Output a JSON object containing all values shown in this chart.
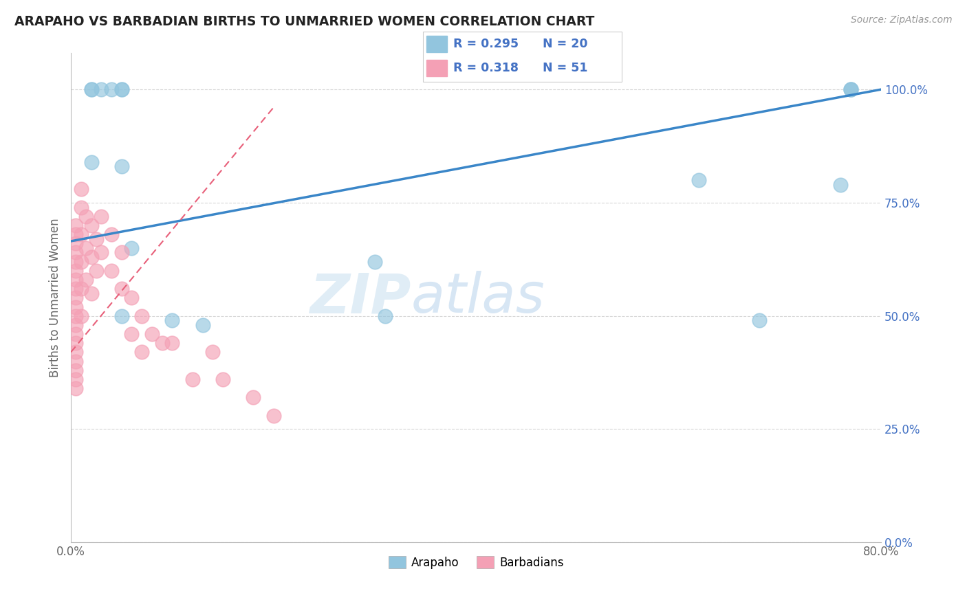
{
  "title": "ARAPAHO VS BARBADIAN BIRTHS TO UNMARRIED WOMEN CORRELATION CHART",
  "source": "Source: ZipAtlas.com",
  "ylabel": "Births to Unmarried Women",
  "xlim": [
    0.0,
    0.8
  ],
  "ylim": [
    0.0,
    1.08
  ],
  "yticks": [
    0.0,
    0.25,
    0.5,
    0.75,
    1.0
  ],
  "ytick_labels": [
    "0.0%",
    "25.0%",
    "50.0%",
    "75.0%",
    "100.0%"
  ],
  "xticks": [
    0.0,
    0.8
  ],
  "xtick_labels": [
    "0.0%",
    "80.0%"
  ],
  "watermark_zip": "ZIP",
  "watermark_atlas": "atlas",
  "arapaho_R": "0.295",
  "arapaho_N": "20",
  "barbadian_R": "0.318",
  "barbadian_N": "51",
  "arapaho_color": "#92c5de",
  "barbadian_color": "#f4a0b5",
  "arapaho_line_color": "#3a86c8",
  "barbadian_line_color": "#e8607a",
  "arapaho_x": [
    0.02,
    0.02,
    0.02,
    0.03,
    0.04,
    0.05,
    0.05,
    0.05,
    0.05,
    0.06,
    0.1,
    0.13,
    0.3,
    0.31,
    0.62,
    0.68,
    0.76,
    0.77,
    0.77,
    0.77
  ],
  "arapaho_y": [
    0.84,
    1.0,
    1.0,
    1.0,
    1.0,
    1.0,
    1.0,
    0.83,
    0.5,
    0.65,
    0.49,
    0.48,
    0.62,
    0.5,
    0.8,
    0.49,
    0.79,
    1.0,
    1.0,
    1.0
  ],
  "barbadian_x": [
    0.005,
    0.005,
    0.005,
    0.005,
    0.005,
    0.005,
    0.005,
    0.005,
    0.005,
    0.005,
    0.005,
    0.005,
    0.005,
    0.005,
    0.005,
    0.005,
    0.005,
    0.005,
    0.005,
    0.01,
    0.01,
    0.01,
    0.01,
    0.01,
    0.01,
    0.015,
    0.015,
    0.015,
    0.02,
    0.02,
    0.02,
    0.025,
    0.025,
    0.03,
    0.03,
    0.04,
    0.04,
    0.05,
    0.05,
    0.06,
    0.06,
    0.07,
    0.07,
    0.08,
    0.09,
    0.1,
    0.12,
    0.14,
    0.15,
    0.18,
    0.2
  ],
  "barbadian_y": [
    0.7,
    0.68,
    0.66,
    0.64,
    0.62,
    0.6,
    0.58,
    0.56,
    0.54,
    0.52,
    0.5,
    0.48,
    0.46,
    0.44,
    0.42,
    0.4,
    0.38,
    0.36,
    0.34,
    0.78,
    0.74,
    0.68,
    0.62,
    0.56,
    0.5,
    0.72,
    0.65,
    0.58,
    0.7,
    0.63,
    0.55,
    0.67,
    0.6,
    0.72,
    0.64,
    0.68,
    0.6,
    0.64,
    0.56,
    0.54,
    0.46,
    0.5,
    0.42,
    0.46,
    0.44,
    0.44,
    0.36,
    0.42,
    0.36,
    0.32,
    0.28
  ],
  "arapaho_trend_x": [
    0.0,
    0.8
  ],
  "arapaho_trend_y": [
    0.665,
    1.0
  ],
  "barbadian_trend_x": [
    0.0,
    0.2
  ],
  "barbadian_trend_y": [
    0.42,
    0.96
  ],
  "grid_color": "#cccccc",
  "background_color": "#ffffff",
  "title_fontsize": 14,
  "axis_label_color": "#666666",
  "tick_color_y": "#4472c4",
  "legend_R_color": "#4472c4",
  "legend_N_color": "#4472c4"
}
